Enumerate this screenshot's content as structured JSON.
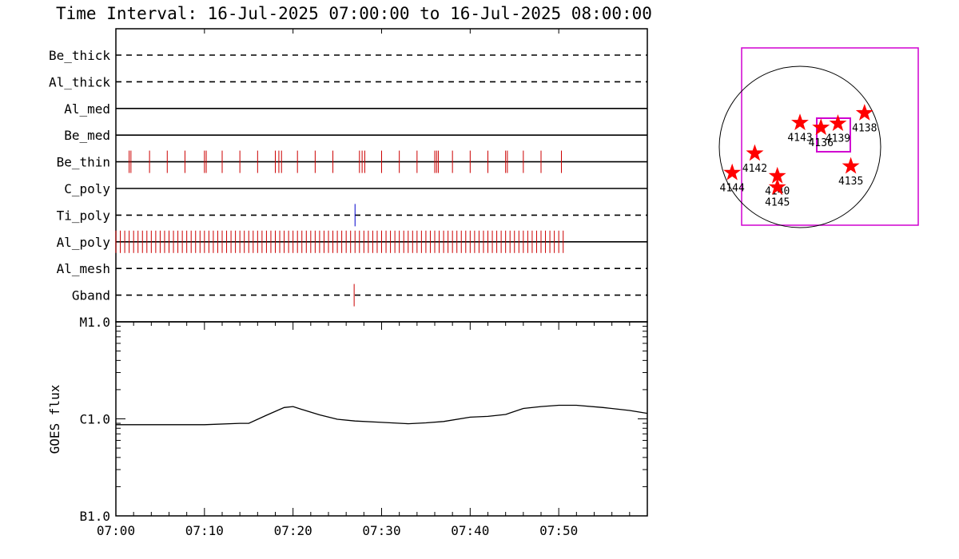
{
  "title": "Time Interval: 16-Jul-2025 07:00:00 to 16-Jul-2025 08:00:00",
  "chart_data": [
    {
      "type": "event-raster",
      "time_range": [
        "07:00",
        "08:00"
      ],
      "channels": [
        {
          "name": "Be_thick",
          "line": "dashed",
          "events": []
        },
        {
          "name": "Al_thick",
          "line": "dashed",
          "events": []
        },
        {
          "name": "Al_med",
          "line": "solid",
          "events": []
        },
        {
          "name": "Be_med",
          "line": "solid",
          "events": []
        },
        {
          "name": "Be_thin",
          "line": "solid",
          "color": "#cc0000",
          "events": [
            1.5,
            1.7,
            3.8,
            5.8,
            7.8,
            10.0,
            10.2,
            12.0,
            14.0,
            16.0,
            18.0,
            18.4,
            18.7,
            20.5,
            22.5,
            24.5,
            27.5,
            27.8,
            28.1,
            30.0,
            32.0,
            34.0,
            36.0,
            36.2,
            36.4,
            38.0,
            40.0,
            42.0,
            44.0,
            44.2,
            46.0,
            48.0,
            50.3
          ]
        },
        {
          "name": "C_poly",
          "line": "solid",
          "events": []
        },
        {
          "name": "Ti_poly",
          "line": "dashed",
          "color": "#0000cc",
          "events": [
            27.0
          ]
        },
        {
          "name": "Al_poly",
          "line": "solid",
          "color": "#cc0000",
          "events_from": 0.0,
          "events_to": 50.5,
          "events_step": 0.5
        },
        {
          "name": "Al_mesh",
          "line": "dashed",
          "events": []
        },
        {
          "name": "Gband",
          "line": "dashed",
          "color": "#cc0000",
          "events": [
            26.9
          ]
        }
      ]
    },
    {
      "type": "line",
      "ylabel": "GOES flux",
      "y_scale": "log",
      "y_ticks": [
        {
          "label": "M1.0",
          "value": 1e-05
        },
        {
          "label": "C1.0",
          "value": 1e-06
        },
        {
          "label": "B1.0",
          "value": 1e-07
        }
      ],
      "x_ticks": [
        "07:00",
        "07:10",
        "07:20",
        "07:30",
        "07:40",
        "07:50"
      ],
      "x": [
        0,
        5,
        10,
        14,
        15,
        17,
        19,
        20,
        21,
        23,
        25,
        27,
        30,
        33,
        35,
        37,
        40,
        42,
        44,
        46,
        48,
        50,
        52,
        55,
        58,
        60
      ],
      "y": [
        8.7e-07,
        8.7e-07,
        8.7e-07,
        9e-07,
        9e-07,
        1.09e-06,
        1.31e-06,
        1.34e-06,
        1.25e-06,
        1.1e-06,
        9.9e-07,
        9.5e-07,
        9.2e-07,
        8.9e-07,
        9.1e-07,
        9.4e-07,
        1.04e-06,
        1.06e-06,
        1.11e-06,
        1.28e-06,
        1.34e-06,
        1.38e-06,
        1.38e-06,
        1.31e-06,
        1.22e-06,
        1.14e-06
      ]
    },
    {
      "type": "scatter",
      "solar_disk": true,
      "points": [
        {
          "label": "4143",
          "x": 0.0,
          "y": 0.3
        },
        {
          "label": "4136",
          "x": 0.26,
          "y": 0.24
        },
        {
          "label": "4139",
          "x": 0.47,
          "y": 0.29
        },
        {
          "label": "4138",
          "x": 0.8,
          "y": 0.42
        },
        {
          "label": "4142",
          "x": -0.56,
          "y": -0.08
        },
        {
          "label": "4135",
          "x": 0.63,
          "y": -0.24
        },
        {
          "label": "4144",
          "x": -0.84,
          "y": -0.32
        },
        {
          "label": "4140",
          "x": -0.28,
          "y": -0.36
        },
        {
          "label": "4145",
          "x": -0.28,
          "y": -0.5
        }
      ]
    }
  ]
}
